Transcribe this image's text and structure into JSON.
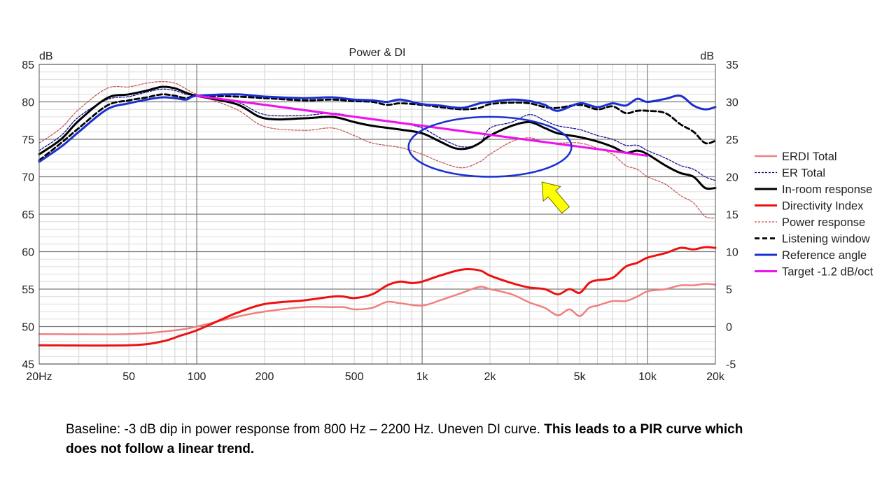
{
  "chart_data": {
    "type": "line",
    "title": "Power & DI",
    "x_scale": "log",
    "xlim": [
      20,
      20000
    ],
    "x_tick_labels": [
      "20Hz",
      "50",
      "100",
      "200",
      "500",
      "1k",
      "2k",
      "5k",
      "10k",
      "20k"
    ],
    "x_tick_values": [
      20,
      50,
      100,
      200,
      500,
      1000,
      2000,
      5000,
      10000,
      20000
    ],
    "y_left": {
      "unit": "dB",
      "lim": [
        45,
        85
      ],
      "ticks": [
        45,
        50,
        55,
        60,
        65,
        70,
        75,
        80,
        85
      ]
    },
    "y_right": {
      "unit": "dB",
      "lim": [
        -5,
        35
      ],
      "ticks": [
        -5,
        0,
        5,
        10,
        15,
        20,
        25,
        30,
        35
      ]
    },
    "grid": true,
    "legend_position": "right",
    "series": [
      {
        "name": "ERDI Total",
        "axis": "right",
        "color": "#f08080",
        "style": "solid",
        "points": [
          [
            20,
            -1
          ],
          [
            50,
            -1
          ],
          [
            80,
            -0.5
          ],
          [
            100,
            0
          ],
          [
            150,
            1.3
          ],
          [
            200,
            2
          ],
          [
            300,
            2.6
          ],
          [
            400,
            2.6
          ],
          [
            450,
            2.6
          ],
          [
            500,
            2.3
          ],
          [
            600,
            2.5
          ],
          [
            700,
            3.3
          ],
          [
            800,
            3.1
          ],
          [
            1000,
            2.8
          ],
          [
            1200,
            3.5
          ],
          [
            1500,
            4.5
          ],
          [
            1800,
            5.3
          ],
          [
            2000,
            5
          ],
          [
            2500,
            4.3
          ],
          [
            3000,
            3.2
          ],
          [
            3500,
            2.5
          ],
          [
            4000,
            1.5
          ],
          [
            4500,
            2.3
          ],
          [
            5000,
            1.4
          ],
          [
            5500,
            2.5
          ],
          [
            6000,
            2.8
          ],
          [
            7000,
            3.4
          ],
          [
            8000,
            3.4
          ],
          [
            9000,
            4
          ],
          [
            10000,
            4.7
          ],
          [
            12000,
            5
          ],
          [
            14000,
            5.5
          ],
          [
            16000,
            5.5
          ],
          [
            18000,
            5.7
          ],
          [
            20000,
            5.6
          ]
        ]
      },
      {
        "name": "ER Total",
        "axis": "left",
        "color": "#00008b",
        "style": "dashed",
        "points": [
          [
            20,
            73.5
          ],
          [
            25,
            75.5
          ],
          [
            30,
            78
          ],
          [
            40,
            80.3
          ],
          [
            50,
            80.7
          ],
          [
            60,
            81.3
          ],
          [
            70,
            81.7
          ],
          [
            80,
            81.5
          ],
          [
            90,
            81
          ],
          [
            100,
            80.8
          ],
          [
            150,
            80
          ],
          [
            200,
            78.3
          ],
          [
            300,
            78.2
          ],
          [
            400,
            78.5
          ],
          [
            500,
            78
          ],
          [
            600,
            77.7
          ],
          [
            800,
            77.2
          ],
          [
            1000,
            76.5
          ],
          [
            1200,
            75.2
          ],
          [
            1500,
            74
          ],
          [
            1800,
            74.5
          ],
          [
            2000,
            76.5
          ],
          [
            2500,
            77.3
          ],
          [
            3000,
            78.3
          ],
          [
            3500,
            77.5
          ],
          [
            4000,
            76.8
          ],
          [
            5000,
            76.3
          ],
          [
            6000,
            75.5
          ],
          [
            7000,
            75
          ],
          [
            8000,
            74.2
          ],
          [
            9000,
            74.2
          ],
          [
            10000,
            73.5
          ],
          [
            12000,
            72.5
          ],
          [
            14000,
            71.5
          ],
          [
            16000,
            71
          ],
          [
            18000,
            70
          ],
          [
            20000,
            69.5
          ]
        ]
      },
      {
        "name": "In-room response",
        "axis": "left",
        "color": "#000000",
        "style": "solid",
        "points": [
          [
            20,
            73
          ],
          [
            25,
            75
          ],
          [
            30,
            77.5
          ],
          [
            40,
            80.5
          ],
          [
            50,
            81
          ],
          [
            60,
            81.5
          ],
          [
            70,
            82
          ],
          [
            80,
            81.8
          ],
          [
            90,
            81.2
          ],
          [
            100,
            80.8
          ],
          [
            150,
            79.7
          ],
          [
            200,
            77.8
          ],
          [
            300,
            77.8
          ],
          [
            400,
            78
          ],
          [
            500,
            77.3
          ],
          [
            600,
            76.8
          ],
          [
            800,
            76.3
          ],
          [
            1000,
            75.8
          ],
          [
            1200,
            74.7
          ],
          [
            1400,
            73.8
          ],
          [
            1600,
            73.8
          ],
          [
            1800,
            74.5
          ],
          [
            2000,
            75.5
          ],
          [
            2500,
            76.8
          ],
          [
            3000,
            77.3
          ],
          [
            3500,
            76.5
          ],
          [
            4000,
            75.8
          ],
          [
            5000,
            75.3
          ],
          [
            6000,
            74.7
          ],
          [
            7000,
            74
          ],
          [
            8000,
            73.2
          ],
          [
            9000,
            73.5
          ],
          [
            10000,
            73
          ],
          [
            12000,
            71.5
          ],
          [
            14000,
            70.5
          ],
          [
            16000,
            70
          ],
          [
            18000,
            68.5
          ],
          [
            20000,
            68.5
          ]
        ]
      },
      {
        "name": "Directivity Index",
        "axis": "right",
        "color": "#ee1111",
        "style": "solid",
        "points": [
          [
            20,
            -2.5
          ],
          [
            50,
            -2.5
          ],
          [
            70,
            -2
          ],
          [
            85,
            -1.2
          ],
          [
            100,
            -0.5
          ],
          [
            130,
            1
          ],
          [
            150,
            1.8
          ],
          [
            200,
            3
          ],
          [
            300,
            3.5
          ],
          [
            400,
            4
          ],
          [
            450,
            4
          ],
          [
            500,
            3.8
          ],
          [
            600,
            4.3
          ],
          [
            700,
            5.5
          ],
          [
            800,
            6
          ],
          [
            900,
            5.8
          ],
          [
            1000,
            6
          ],
          [
            1200,
            6.8
          ],
          [
            1500,
            7.6
          ],
          [
            1800,
            7.5
          ],
          [
            2000,
            6.8
          ],
          [
            2500,
            5.8
          ],
          [
            3000,
            5.2
          ],
          [
            3500,
            5
          ],
          [
            4000,
            4.3
          ],
          [
            4500,
            5
          ],
          [
            5000,
            4.5
          ],
          [
            5500,
            5.8
          ],
          [
            6000,
            6.2
          ],
          [
            7000,
            6.5
          ],
          [
            8000,
            8
          ],
          [
            9000,
            8.5
          ],
          [
            10000,
            9.2
          ],
          [
            12000,
            9.8
          ],
          [
            14000,
            10.5
          ],
          [
            16000,
            10.3
          ],
          [
            18000,
            10.6
          ],
          [
            20000,
            10.5
          ]
        ]
      },
      {
        "name": "Power response",
        "axis": "left",
        "color": "#c0504d",
        "style": "dashed",
        "points": [
          [
            20,
            74.5
          ],
          [
            25,
            76.5
          ],
          [
            30,
            79
          ],
          [
            40,
            81.8
          ],
          [
            50,
            82
          ],
          [
            60,
            82.5
          ],
          [
            70,
            82.7
          ],
          [
            80,
            82.5
          ],
          [
            90,
            81.7
          ],
          [
            100,
            81
          ],
          [
            150,
            79
          ],
          [
            200,
            76.7
          ],
          [
            300,
            76.2
          ],
          [
            400,
            76.5
          ],
          [
            500,
            75.5
          ],
          [
            600,
            74.5
          ],
          [
            800,
            73.9
          ],
          [
            1000,
            73
          ],
          [
            1200,
            72
          ],
          [
            1500,
            71.2
          ],
          [
            1800,
            72
          ],
          [
            2000,
            73
          ],
          [
            2500,
            74.7
          ],
          [
            3000,
            75.2
          ],
          [
            3500,
            74.6
          ],
          [
            4000,
            74.5
          ],
          [
            5000,
            74.5
          ],
          [
            6000,
            73.8
          ],
          [
            7000,
            73
          ],
          [
            8000,
            71.5
          ],
          [
            9000,
            71
          ],
          [
            10000,
            70
          ],
          [
            12000,
            69
          ],
          [
            14000,
            67.5
          ],
          [
            16000,
            66.5
          ],
          [
            18000,
            64.7
          ],
          [
            20000,
            64.5
          ]
        ]
      },
      {
        "name": "Listening window",
        "axis": "left",
        "color": "#000000",
        "style": "dashed",
        "points": [
          [
            20,
            72.2
          ],
          [
            25,
            74.5
          ],
          [
            30,
            76.5
          ],
          [
            40,
            79.5
          ],
          [
            50,
            80.2
          ],
          [
            60,
            80.6
          ],
          [
            70,
            81
          ],
          [
            80,
            80.8
          ],
          [
            90,
            80.5
          ],
          [
            100,
            80.8
          ],
          [
            150,
            80.7
          ],
          [
            200,
            80.5
          ],
          [
            300,
            80.2
          ],
          [
            400,
            80.3
          ],
          [
            500,
            80.1
          ],
          [
            600,
            80
          ],
          [
            700,
            79.6
          ],
          [
            800,
            79.8
          ],
          [
            1000,
            79.6
          ],
          [
            1200,
            79.3
          ],
          [
            1500,
            79
          ],
          [
            1800,
            79.2
          ],
          [
            2000,
            79.7
          ],
          [
            2500,
            79.9
          ],
          [
            3000,
            79.8
          ],
          [
            3500,
            79.3
          ],
          [
            4000,
            79.2
          ],
          [
            5000,
            79.6
          ],
          [
            6000,
            79
          ],
          [
            7000,
            79.4
          ],
          [
            8000,
            78.5
          ],
          [
            9000,
            78.8
          ],
          [
            10000,
            78.8
          ],
          [
            12000,
            78.5
          ],
          [
            14000,
            77
          ],
          [
            16000,
            76
          ],
          [
            18000,
            74.5
          ],
          [
            20000,
            74.8
          ]
        ]
      },
      {
        "name": "Reference angle",
        "axis": "left",
        "color": "#1a2fd0",
        "style": "solid",
        "points": [
          [
            20,
            72
          ],
          [
            25,
            74
          ],
          [
            30,
            76
          ],
          [
            40,
            79
          ],
          [
            50,
            79.8
          ],
          [
            60,
            80.3
          ],
          [
            70,
            80.6
          ],
          [
            80,
            80.5
          ],
          [
            90,
            80.3
          ],
          [
            100,
            80.8
          ],
          [
            150,
            81
          ],
          [
            200,
            80.7
          ],
          [
            300,
            80.5
          ],
          [
            400,
            80.6
          ],
          [
            500,
            80.3
          ],
          [
            600,
            80.2
          ],
          [
            700,
            80
          ],
          [
            800,
            80.3
          ],
          [
            1000,
            79.7
          ],
          [
            1200,
            79.5
          ],
          [
            1500,
            79.2
          ],
          [
            1800,
            79.8
          ],
          [
            2000,
            80
          ],
          [
            2500,
            80.3
          ],
          [
            3000,
            80.1
          ],
          [
            3500,
            79.6
          ],
          [
            4000,
            78.8
          ],
          [
            5000,
            79.8
          ],
          [
            6000,
            79.3
          ],
          [
            7000,
            79.8
          ],
          [
            8000,
            79.5
          ],
          [
            9000,
            80.4
          ],
          [
            10000,
            80
          ],
          [
            12000,
            80.4
          ],
          [
            14000,
            80.8
          ],
          [
            16000,
            79.5
          ],
          [
            18000,
            79
          ],
          [
            20000,
            79.3
          ]
        ]
      },
      {
        "name": "Target -1.2 dB/oct",
        "axis": "left",
        "color": "#ee11ee",
        "style": "solid",
        "points": [
          [
            100,
            80.8
          ],
          [
            10000,
            72.8
          ]
        ]
      }
    ],
    "annotations": [
      {
        "type": "ellipse",
        "color": "#1a2fd0",
        "center": [
          2000,
          74
        ],
        "rx_octaves": 1.2,
        "ry_db": 4
      },
      {
        "type": "arrow",
        "color": "#ffff00",
        "points_to": [
          3400,
          69.3
        ]
      }
    ]
  },
  "caption": {
    "plain": "Baseline:  -3 dB dip in power response from 800 Hz – 2200 Hz.  Uneven DI curve.  ",
    "bold": "This leads to a PIR curve which does not follow a linear trend."
  }
}
